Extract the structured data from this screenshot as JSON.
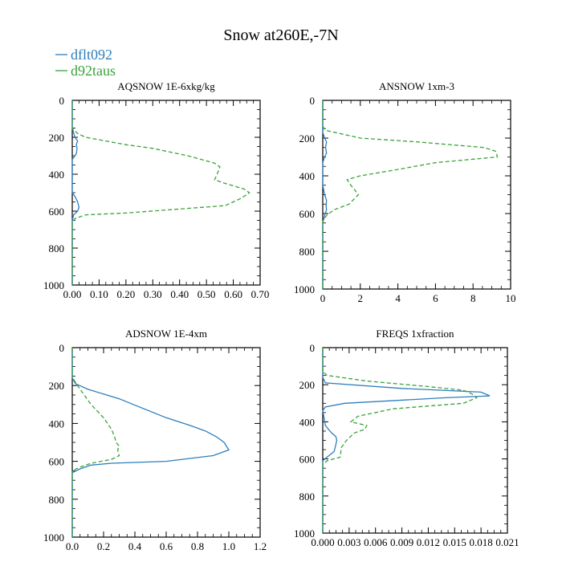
{
  "figure": {
    "title": "Snow at260E,-7N",
    "legend": [
      {
        "name": "dflt092",
        "color": "#2e7ebc",
        "style": "solid"
      },
      {
        "name": "d92taus",
        "color": "#3aa23a",
        "style": "dashed"
      }
    ]
  },
  "chart_data": [
    {
      "type": "line",
      "title": "AQSNOW  1E-6xkg/kg",
      "xlim": [
        0,
        0.7
      ],
      "ylim": [
        1000,
        0
      ],
      "xticks": [
        0,
        0.1,
        0.2,
        0.3,
        0.4,
        0.5,
        0.6,
        0.7
      ],
      "xtick_labels": [
        "0.00",
        "0.10",
        "0.20",
        "0.30",
        "0.40",
        "0.50",
        "0.60",
        "0.70"
      ],
      "yticks": [
        0,
        200,
        400,
        600,
        800,
        1000
      ],
      "ytick_labels": [
        "0",
        "200",
        "400",
        "600",
        "800",
        "1000"
      ],
      "series": [
        {
          "name": "dflt092",
          "color": "#2e7ebc",
          "style": "solid",
          "x": [
            0,
            0,
            0.01,
            0.02,
            0.015,
            0.018,
            0.015,
            0,
            0,
            0,
            0.01,
            0.02,
            0.025,
            0.02,
            0.005,
            0,
            0,
            0,
            0
          ],
          "y": [
            0,
            150,
            200,
            220,
            240,
            260,
            290,
            320,
            400,
            500,
            520,
            550,
            580,
            600,
            620,
            650,
            700,
            800,
            1000
          ]
        },
        {
          "name": "d92taus",
          "color": "#3aa23a",
          "style": "dashed",
          "x": [
            0,
            0,
            0.02,
            0.05,
            0.2,
            0.3,
            0.43,
            0.53,
            0.55,
            0.54,
            0.53,
            0.57,
            0.64,
            0.66,
            0.63,
            0.57,
            0.2,
            0.05,
            0.01,
            0,
            0
          ],
          "y": [
            0,
            150,
            180,
            200,
            240,
            260,
            300,
            340,
            360,
            400,
            430,
            450,
            480,
            500,
            530,
            570,
            610,
            620,
            640,
            660,
            1000
          ]
        }
      ]
    },
    {
      "type": "line",
      "title": "ANSNOW  1xm-3",
      "xlim": [
        0,
        10
      ],
      "ylim": [
        1000,
        0
      ],
      "xticks": [
        0,
        2,
        4,
        6,
        8,
        10
      ],
      "xtick_labels": [
        "0",
        "2",
        "4",
        "6",
        "8",
        "10"
      ],
      "yticks": [
        0,
        200,
        400,
        600,
        800,
        1000
      ],
      "ytick_labels": [
        "0",
        "200",
        "400",
        "600",
        "800",
        "1000"
      ],
      "series": [
        {
          "name": "dflt092",
          "color": "#2e7ebc",
          "style": "solid",
          "x": [
            0,
            0,
            0.1,
            0.2,
            0.15,
            0.2,
            0.1,
            0,
            0,
            0.1,
            0.2,
            0.18,
            0.2,
            0.1,
            0,
            0
          ],
          "y": [
            0,
            170,
            200,
            220,
            250,
            280,
            300,
            330,
            450,
            500,
            530,
            560,
            580,
            610,
            650,
            1000
          ]
        },
        {
          "name": "d92taus",
          "color": "#3aa23a",
          "style": "dashed",
          "x": [
            0,
            0,
            0.2,
            2,
            5,
            8.6,
            9.2,
            9.3,
            6,
            3.8,
            2,
            1.3,
            1.5,
            1.9,
            1.6,
            1.4,
            0.6,
            0.2,
            0,
            0
          ],
          "y": [
            0,
            140,
            160,
            200,
            220,
            250,
            270,
            300,
            330,
            370,
            400,
            420,
            450,
            500,
            530,
            550,
            580,
            610,
            640,
            1000
          ]
        }
      ]
    },
    {
      "type": "line",
      "title": "ADSNOW  1E-4xm",
      "xlim": [
        0,
        1.2
      ],
      "ylim": [
        1000,
        0
      ],
      "xticks": [
        0,
        0.2,
        0.4,
        0.6,
        0.8,
        1.0,
        1.2
      ],
      "xtick_labels": [
        "0.0",
        "0.2",
        "0.4",
        "0.6",
        "0.8",
        "1.0",
        "1.2"
      ],
      "yticks": [
        0,
        200,
        400,
        600,
        800,
        1000
      ],
      "ytick_labels": [
        "0",
        "200",
        "400",
        "600",
        "800",
        "1000"
      ],
      "series": [
        {
          "name": "dflt092",
          "color": "#2e7ebc",
          "style": "solid",
          "x": [
            0,
            0,
            0.02,
            0.1,
            0.3,
            0.42,
            0.6,
            0.75,
            0.85,
            0.92,
            0.97,
            1.0,
            0.9,
            0.6,
            0.25,
            0.12,
            0.05,
            0,
            0
          ],
          "y": [
            0,
            160,
            190,
            220,
            270,
            310,
            370,
            410,
            440,
            470,
            500,
            540,
            570,
            600,
            610,
            620,
            640,
            660,
            1000
          ]
        },
        {
          "name": "d92taus",
          "color": "#3aa23a",
          "style": "dashed",
          "x": [
            0,
            0,
            0.01,
            0.05,
            0.12,
            0.2,
            0.25,
            0.27,
            0.28,
            0.3,
            0.29,
            0.3,
            0.25,
            0.12,
            0.05,
            0,
            0
          ],
          "y": [
            0,
            150,
            170,
            220,
            300,
            370,
            430,
            470,
            500,
            520,
            540,
            570,
            590,
            610,
            630,
            650,
            1000
          ]
        }
      ]
    },
    {
      "type": "line",
      "title": "FREQS  1xfraction",
      "xlim": [
        0,
        0.021
      ],
      "ylim": [
        1000,
        0
      ],
      "xticks": [
        0,
        0.003,
        0.006,
        0.009,
        0.012,
        0.015,
        0.018,
        0.021
      ],
      "xtick_labels": [
        "0.000",
        "0.003",
        "0.006",
        "0.009",
        "0.012",
        "0.015",
        "0.018",
        "0.021"
      ],
      "yticks": [
        0,
        200,
        400,
        600,
        800,
        1000
      ],
      "ytick_labels": [
        "0",
        "200",
        "400",
        "600",
        "800",
        "1000"
      ],
      "series": [
        {
          "name": "dflt092",
          "color": "#2e7ebc",
          "style": "solid",
          "x": [
            0,
            0,
            0.0003,
            0.009,
            0.018,
            0.019,
            0.014,
            0.0025,
            0.0003,
            0,
            0.0003,
            0.001,
            0.0015,
            0.0016,
            0.0013,
            0.0005,
            0,
            0
          ],
          "y": [
            0,
            160,
            190,
            220,
            240,
            260,
            270,
            300,
            320,
            340,
            420,
            460,
            480,
            500,
            560,
            590,
            610,
            1000
          ]
        },
        {
          "name": "d92taus",
          "color": "#3aa23a",
          "style": "dashed",
          "x": [
            0,
            0,
            0.0005,
            0.005,
            0.012,
            0.016,
            0.017,
            0.0175,
            0.016,
            0.008,
            0.004,
            0.0032,
            0.005,
            0.0048,
            0.0036,
            0.0027,
            0.0021,
            0.002,
            0.0005,
            0,
            0
          ],
          "y": [
            0,
            130,
            150,
            180,
            210,
            230,
            250,
            270,
            300,
            330,
            370,
            400,
            420,
            440,
            460,
            500,
            540,
            590,
            610,
            630,
            1000
          ]
        }
      ]
    }
  ]
}
